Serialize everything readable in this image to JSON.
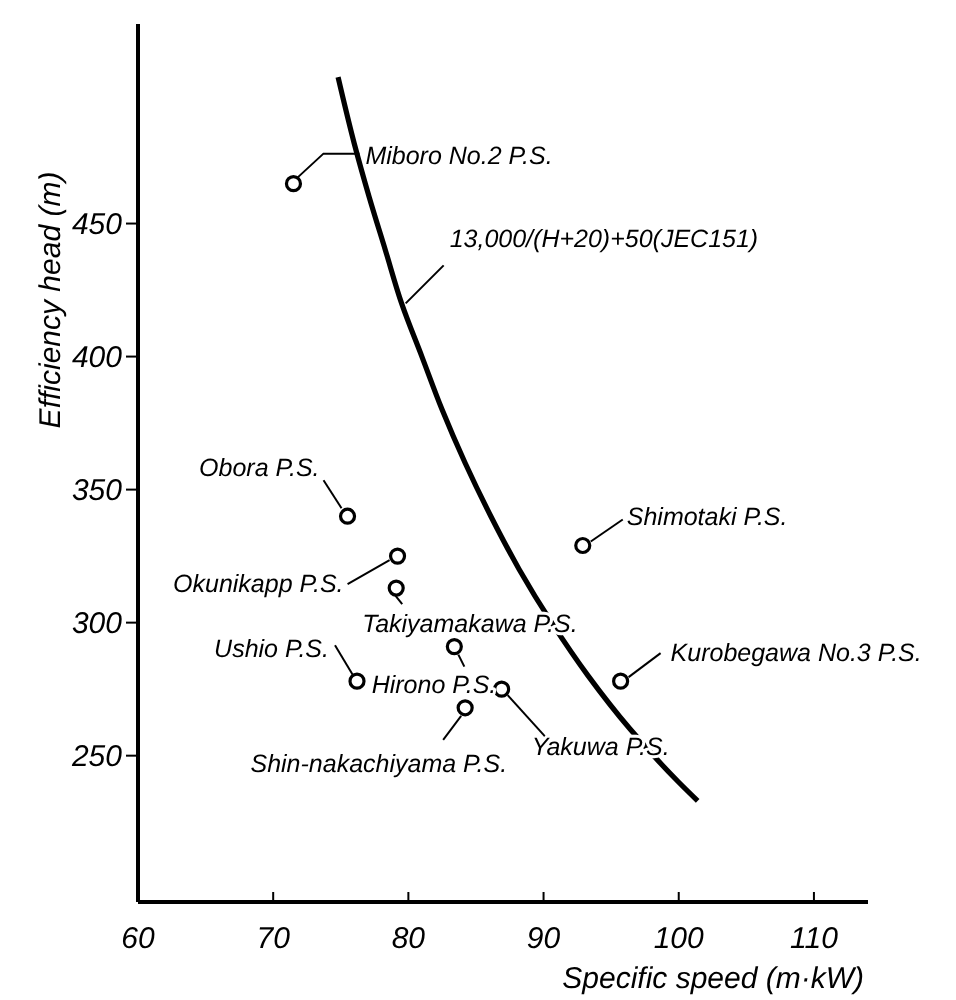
{
  "chart_data": {
    "type": "scatter",
    "xlabel": "Specific speed (m·kW)",
    "ylabel": "Efficiency head (m)",
    "xlim": [
      60,
      114
    ],
    "ylim": [
      195,
      525
    ],
    "xticks": [
      60,
      70,
      80,
      90,
      100,
      110
    ],
    "yticks": [
      250,
      300,
      350,
      400,
      450
    ],
    "grid": false,
    "marker": "circle",
    "series": [
      {
        "color": "#000000",
        "x": [
          71.5,
          75.5,
          79.2,
          79.1,
          76.2,
          83.4,
          84.2,
          86.9,
          92.9,
          95.7
        ],
        "values": [
          465,
          340,
          325,
          313,
          278,
          291,
          268,
          275,
          329,
          278
        ]
      },
      {
        "type": "line",
        "color": "#000000",
        "marker": "none",
        "line_style": "solid",
        "x": [
          74.8,
          76.0,
          77.1,
          78.3,
          79.5,
          81.0,
          82.5,
          84.2,
          86.1,
          88.2,
          90.6,
          93.3,
          96.4,
          100.0,
          101.4
        ],
        "values": [
          505,
          480,
          460,
          440,
          420,
          400,
          380,
          360,
          340,
          320,
          300,
          280,
          260,
          240,
          233
        ]
      }
    ],
    "annotations": [
      {
        "text": "Miboro No.2 P.S.",
        "x": 71.5,
        "y": 465
      },
      {
        "text": "13,000/(H+20)+50(JEC151)",
        "x": 79.8,
        "y": 420
      },
      {
        "text": "Obora P.S.",
        "x": 75.5,
        "y": 340
      },
      {
        "text": "Okunikapp P.S.",
        "x": 79.2,
        "y": 325
      },
      {
        "text": "Takiyamakawa P.S.",
        "x": 79.1,
        "y": 313
      },
      {
        "text": "Ushio P.S.",
        "x": 76.2,
        "y": 278
      },
      {
        "text": "Hirono P.S.",
        "x": 83.4,
        "y": 291
      },
      {
        "text": "Shin-nakachiyama P.S.",
        "x": 84.2,
        "y": 268
      },
      {
        "text": "Yakuwa P.S.",
        "x": 86.9,
        "y": 275
      },
      {
        "text": "Shimotaki P.S.",
        "x": 92.9,
        "y": 329
      },
      {
        "text": "Kurobegawa No.3 P.S.",
        "x": 95.7,
        "y": 278
      }
    ]
  }
}
